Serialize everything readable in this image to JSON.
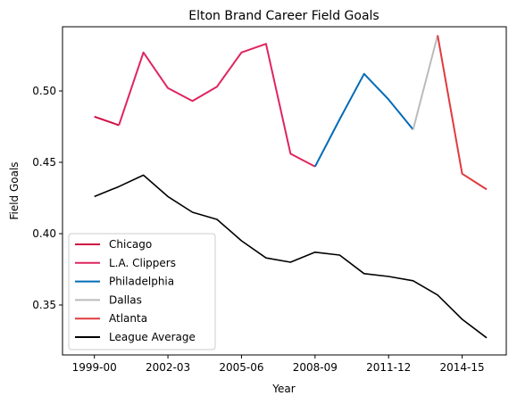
{
  "chart_data": {
    "type": "line",
    "title": "Elton Brand Career Field Goals",
    "xlabel": "Year",
    "ylabel": "Field Goals",
    "x_tick_labels": [
      "1999-00",
      "2002-03",
      "2005-06",
      "2008-09",
      "2011-12",
      "2014-15"
    ],
    "x_tick_index": [
      0,
      3,
      6,
      9,
      12,
      15
    ],
    "seasons": [
      "1999-00",
      "2000-01",
      "2001-02",
      "2002-03",
      "2003-04",
      "2004-05",
      "2005-06",
      "2006-07",
      "2007-08",
      "2008-09",
      "2009-10",
      "2010-11",
      "2011-12",
      "2012-13",
      "2013-14",
      "2014-15",
      "2015-16"
    ],
    "ylim": [
      0.315,
      0.545
    ],
    "y_ticks": [
      0.35,
      0.4,
      0.45,
      0.5
    ],
    "y_tick_labels": [
      "0.35",
      "0.40",
      "0.45",
      "0.50"
    ],
    "legend_position": "lower-left",
    "series": [
      {
        "name": "Chicago",
        "color": "#ce1141",
        "x": [
          0,
          1
        ],
        "values": [
          0.482,
          0.476
        ]
      },
      {
        "name": "L.A. Clippers",
        "color": "#e0245e",
        "x": [
          1,
          2,
          3,
          4,
          5,
          6,
          7,
          8,
          9
        ],
        "values": [
          0.476,
          0.527,
          0.502,
          0.493,
          0.503,
          0.527,
          0.533,
          0.456,
          0.447
        ]
      },
      {
        "name": "Philadelphia",
        "color": "#006bb6",
        "x": [
          9,
          10,
          11,
          12,
          13
        ],
        "values": [
          0.447,
          0.48,
          0.512,
          0.494,
          0.473
        ]
      },
      {
        "name": "Dallas",
        "color": "#bbbbbb",
        "x": [
          13,
          14
        ],
        "values": [
          0.473,
          0.539
        ]
      },
      {
        "name": "Atlanta",
        "color": "#e03a3e",
        "x": [
          14,
          15,
          16
        ],
        "values": [
          0.539,
          0.442,
          0.431
        ]
      },
      {
        "name": "League Average",
        "color": "#000000",
        "x": [
          0,
          1,
          2,
          3,
          4,
          5,
          6,
          7,
          8,
          9,
          10,
          11,
          12,
          13,
          14,
          15,
          16
        ],
        "values": [
          0.426,
          0.433,
          0.441,
          0.426,
          0.415,
          0.41,
          0.395,
          0.383,
          0.38,
          0.387,
          0.385,
          0.372,
          0.37,
          0.367,
          0.357,
          0.34,
          0.327
        ]
      }
    ]
  }
}
